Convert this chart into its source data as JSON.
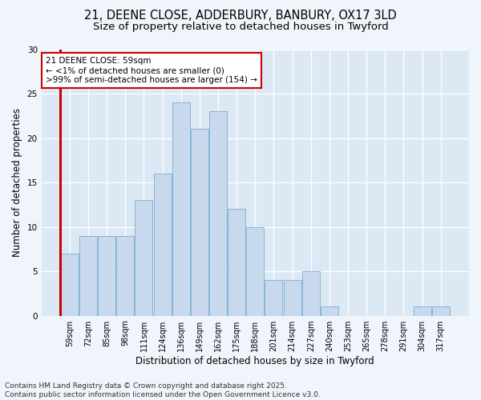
{
  "title_line1": "21, DEENE CLOSE, ADDERBURY, BANBURY, OX17 3LD",
  "title_line2": "Size of property relative to detached houses in Twyford",
  "xlabel": "Distribution of detached houses by size in Twyford",
  "ylabel": "Number of detached properties",
  "categories": [
    "59sqm",
    "72sqm",
    "85sqm",
    "98sqm",
    "111sqm",
    "124sqm",
    "136sqm",
    "149sqm",
    "162sqm",
    "175sqm",
    "188sqm",
    "201sqm",
    "214sqm",
    "227sqm",
    "240sqm",
    "253sqm",
    "265sqm",
    "278sqm",
    "291sqm",
    "304sqm",
    "317sqm"
  ],
  "values": [
    7,
    9,
    9,
    9,
    13,
    16,
    24,
    21,
    23,
    12,
    10,
    4,
    4,
    5,
    1,
    0,
    0,
    0,
    0,
    1,
    1
  ],
  "bar_color": "#c8d9ee",
  "bar_edge_color": "#7aadd4",
  "highlight_line_color": "#cc0000",
  "annotation_line1": "21 DEENE CLOSE: 59sqm",
  "annotation_line2": "← <1% of detached houses are smaller (0)",
  "annotation_line3": ">99% of semi-detached houses are larger (154) →",
  "annotation_box_color": "#ffffff",
  "annotation_box_edge_color": "#cc0000",
  "ylim": [
    0,
    30
  ],
  "yticks": [
    0,
    5,
    10,
    15,
    20,
    25,
    30
  ],
  "fig_bg_color": "#f0f4fb",
  "plot_bg_color": "#dce9f5",
  "title_fontsize": 10.5,
  "subtitle_fontsize": 9.5,
  "label_fontsize": 8.5,
  "tick_fontsize": 7,
  "annotation_fontsize": 7.5,
  "footer_fontsize": 6.5,
  "footer_line1": "Contains HM Land Registry data © Crown copyright and database right 2025.",
  "footer_line2": "Contains public sector information licensed under the Open Government Licence v3.0."
}
